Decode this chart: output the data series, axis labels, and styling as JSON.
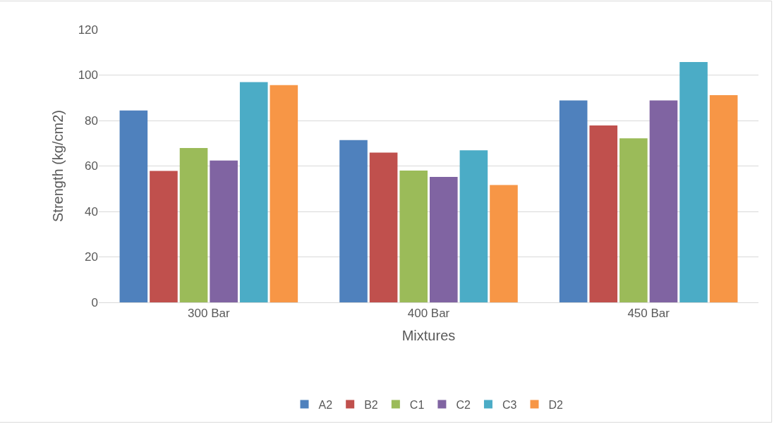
{
  "chart_data": {
    "type": "bar",
    "xlabel": "Mixtures",
    "ylabel": "Strength (kg/cm2)",
    "categories": [
      "300 Bar",
      "400 Bar",
      "450 Bar"
    ],
    "series": [
      {
        "name": "A2",
        "color": "#4f81bd",
        "values": [
          84.4,
          71.4,
          88.8
        ]
      },
      {
        "name": "B2",
        "color": "#c0504d",
        "values": [
          57.8,
          65.9,
          77.8
        ]
      },
      {
        "name": "C1",
        "color": "#9bbb59",
        "values": [
          67.9,
          58.0,
          72.2
        ]
      },
      {
        "name": "C2",
        "color": "#8064a2",
        "values": [
          62.4,
          55.2,
          88.8
        ]
      },
      {
        "name": "C3",
        "color": "#4bacc6",
        "values": [
          96.9,
          66.9,
          105.7
        ]
      },
      {
        "name": "D2",
        "color": "#f79646",
        "values": [
          95.6,
          51.6,
          91.2
        ]
      }
    ],
    "ylim": [
      0,
      120
    ],
    "yticks": [
      0,
      20,
      40,
      60,
      80,
      100,
      120
    ],
    "grid": "y",
    "legend": "bottom"
  }
}
